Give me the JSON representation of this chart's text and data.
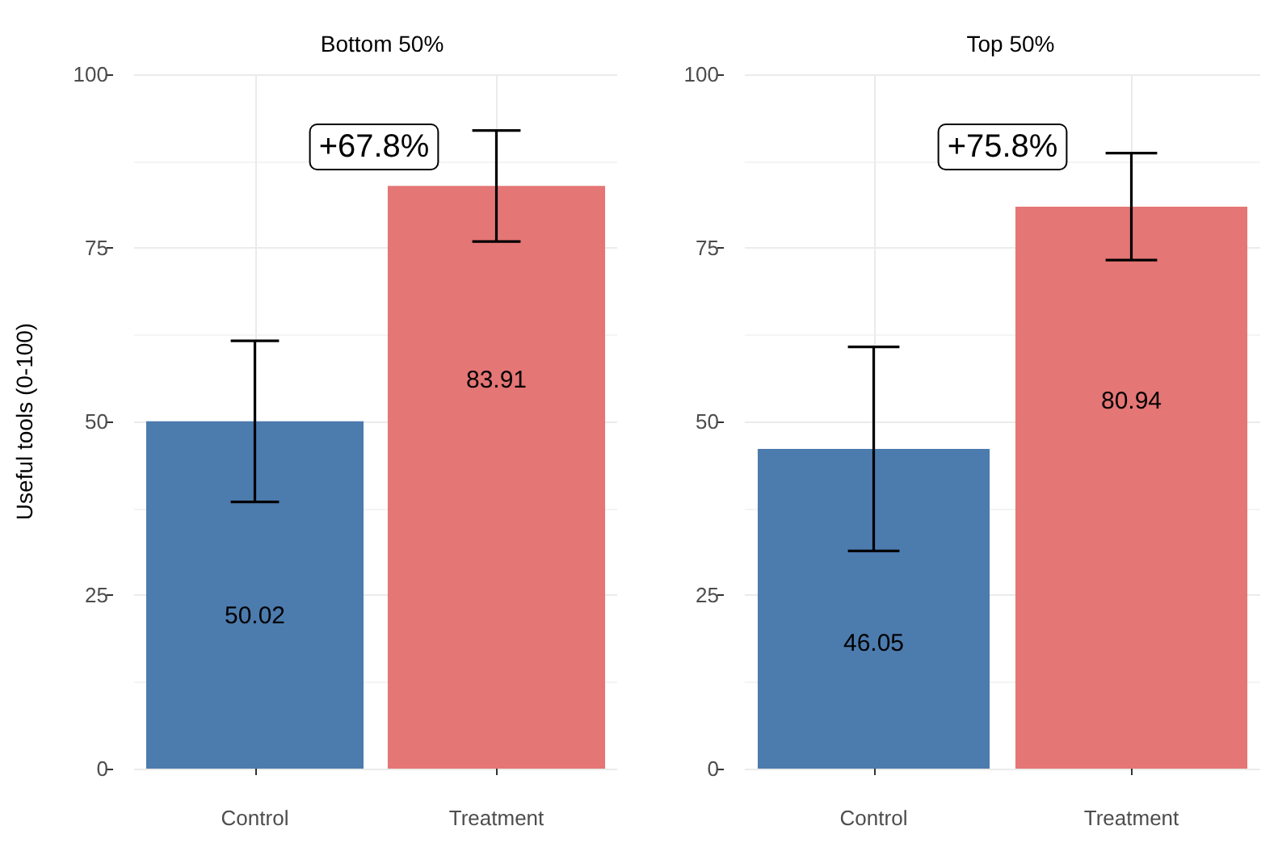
{
  "chart_data": [
    {
      "type": "bar",
      "title": "Bottom 50%",
      "ylabel": "Useful tools (0-100)",
      "categories": [
        "Control",
        "Treatment"
      ],
      "values": [
        50.02,
        83.91
      ],
      "colors": [
        "#4c7bae",
        "#e47675"
      ],
      "errors": [
        11.6,
        8
      ],
      "data_labels": true,
      "annotations": [
        "+67.8%"
      ],
      "ylim": [
        0,
        100
      ],
      "yticks": [
        0,
        25,
        50,
        75,
        100
      ],
      "grid": true
    },
    {
      "type": "bar",
      "title": "Top 50%",
      "categories": [
        "Control",
        "Treatment"
      ],
      "values": [
        46.05,
        80.94
      ],
      "colors": [
        "#4c7bae",
        "#e47675"
      ],
      "errors": [
        14.7,
        7.7
      ],
      "data_labels": true,
      "annotations": [
        "+75.8%"
      ],
      "ylim": [
        0,
        100
      ],
      "yticks": [
        0,
        25,
        50,
        75,
        100
      ],
      "grid": true
    }
  ]
}
